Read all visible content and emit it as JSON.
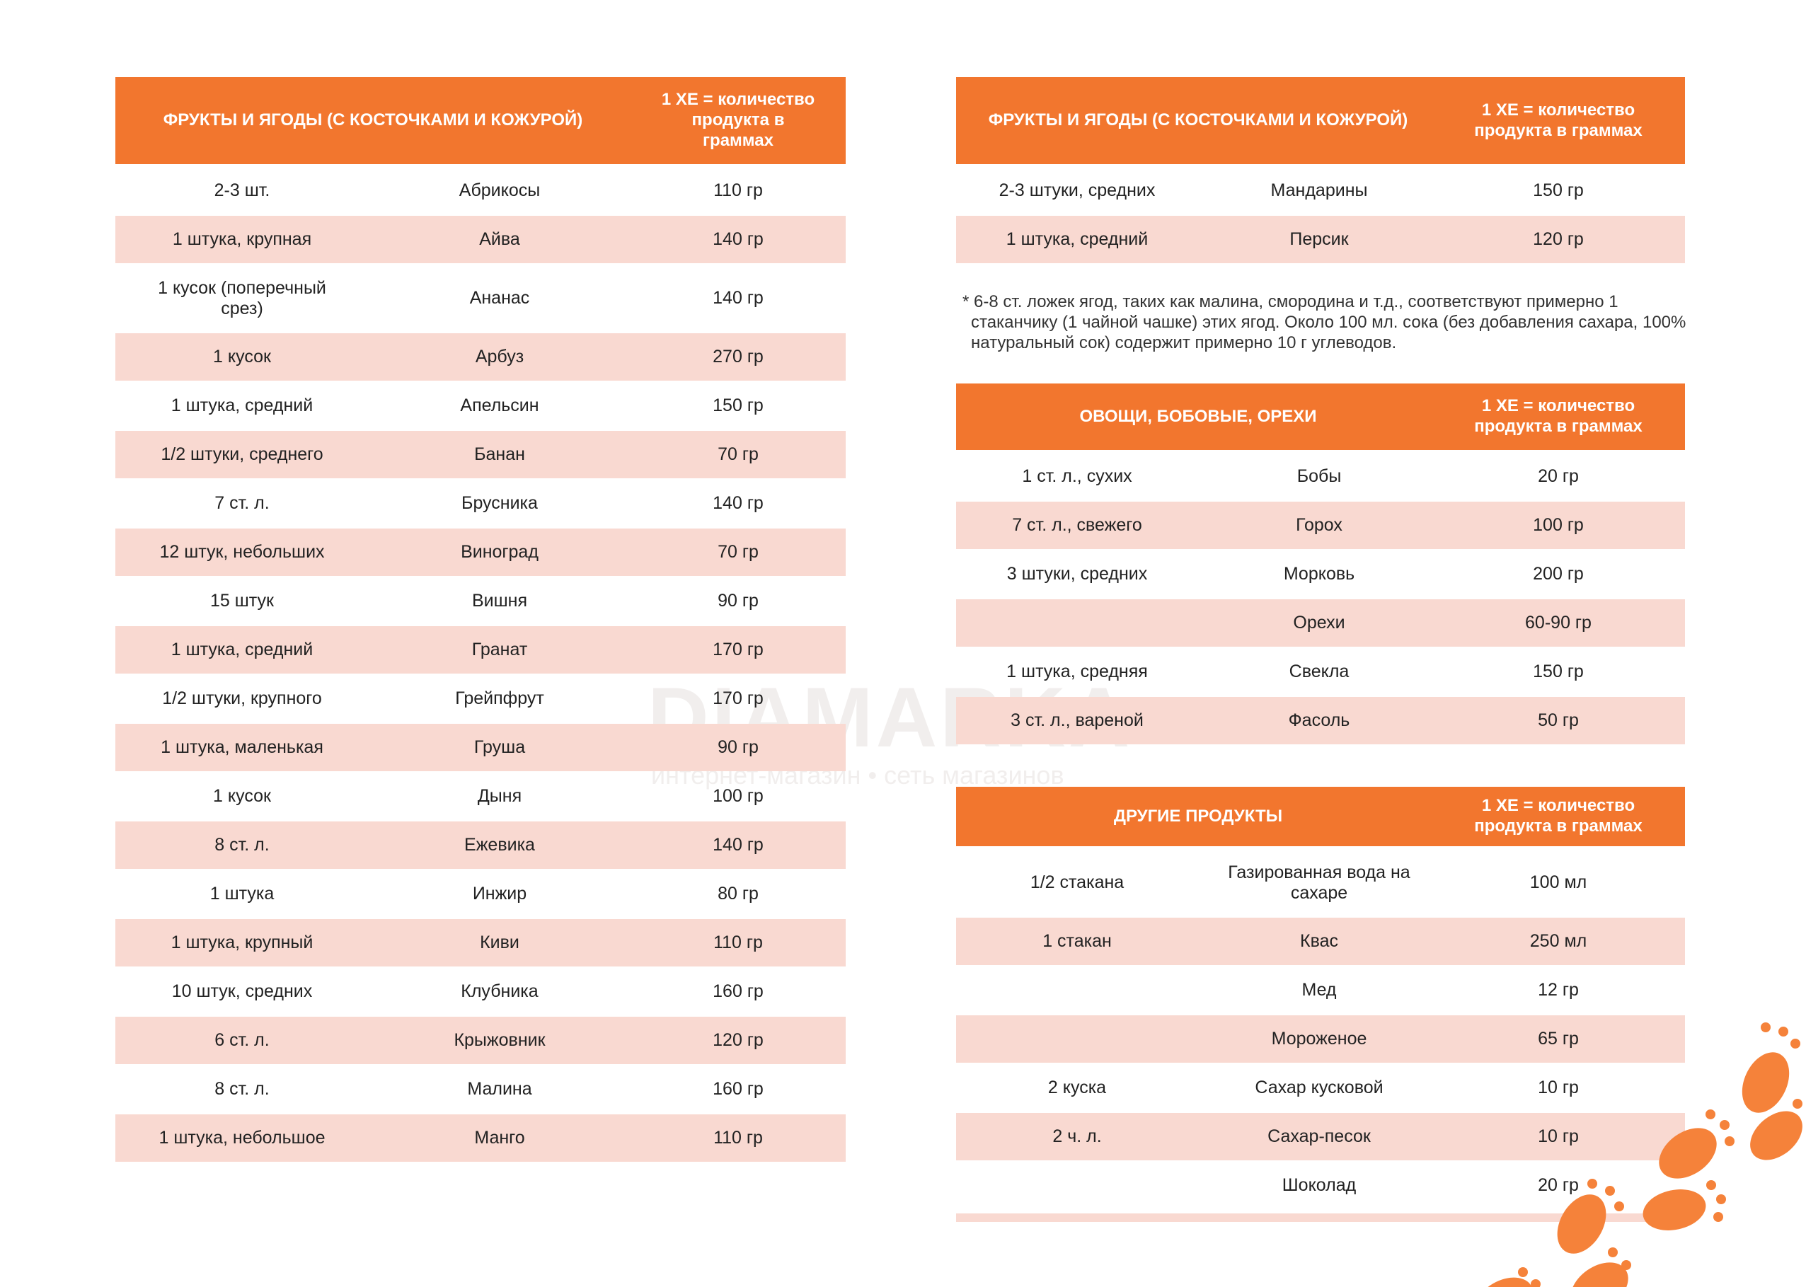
{
  "fruits_table_1": {
    "header": {
      "category": "ФРУКТЫ И ЯГОДЫ (С КОСТОЧКАМИ И КОЖУРОЙ)",
      "amount": "1 ХЕ = количество продукта в граммах"
    },
    "rows": [
      {
        "portion": "2-3 шт.",
        "product": "Абрикосы",
        "weight": "110 гр"
      },
      {
        "portion": "1 штука, крупная",
        "product": "Айва",
        "weight": "140 гр"
      },
      {
        "portion": "1 кусок (поперечный срез)",
        "product": "Ананас",
        "weight": "140 гр"
      },
      {
        "portion": "1 кусок",
        "product": "Арбуз",
        "weight": "270 гр"
      },
      {
        "portion": "1 штука, средний",
        "product": "Апельсин",
        "weight": "150 гр"
      },
      {
        "portion": "1/2 штуки, среднего",
        "product": "Банан",
        "weight": "70 гр"
      },
      {
        "portion": "7 ст. л.",
        "product": "Брусника",
        "weight": "140 гр"
      },
      {
        "portion": "12 штук, небольших",
        "product": "Виноград",
        "weight": "70 гр"
      },
      {
        "portion": "15 штук",
        "product": "Вишня",
        "weight": "90 гр"
      },
      {
        "portion": "1 штука, средний",
        "product": "Гранат",
        "weight": "170 гр"
      },
      {
        "portion": "1/2 штуки, крупного",
        "product": "Грейпфрут",
        "weight": "170 гр"
      },
      {
        "portion": "1 штука, маленькая",
        "product": "Груша",
        "weight": "90 гр"
      },
      {
        "portion": "1 кусок",
        "product": "Дыня",
        "weight": "100 гр"
      },
      {
        "portion": "8 ст. л.",
        "product": "Ежевика",
        "weight": "140 гр"
      },
      {
        "portion": "1 штука",
        "product": "Инжир",
        "weight": "80 гр"
      },
      {
        "portion": "1 штука, крупный",
        "product": "Киви",
        "weight": "110 гр"
      },
      {
        "portion": "10 штук, средних",
        "product": "Клубника",
        "weight": "160 гр"
      },
      {
        "portion": "6 ст. л.",
        "product": "Крыжовник",
        "weight": "120 гр"
      },
      {
        "portion": "8 ст. л.",
        "product": "Малина",
        "weight": "160 гр"
      },
      {
        "portion": "1 штука, небольшое",
        "product": "Манго",
        "weight": "110 гр"
      }
    ]
  },
  "fruits_table_2": {
    "header": {
      "category": "ФРУКТЫ И ЯГОДЫ (С КОСТОЧКАМИ И КОЖУРОЙ)",
      "amount": "1 ХЕ = количество продукта в граммах"
    },
    "rows": [
      {
        "portion": "2-3 штуки, средних",
        "product": "Мандарины",
        "weight": "150 гр"
      },
      {
        "portion": "1 штука, средний",
        "product": "Персик",
        "weight": "120 гр"
      }
    ]
  },
  "note": "* 6-8 ст. ложек ягод, таких как малина, смородина и т.д., соответствуют примерно 1 стаканчику (1 чайной чашке) этих ягод. Около 100 мл. сока (без добавления сахара, 100% натуральный сок) содержит примерно 10 г углеводов.",
  "vegetables_table": {
    "header": {
      "category": "ОВОЩИ, БОБОВЫЕ, ОРЕХИ",
      "amount": "1 ХЕ = количество продукта в граммах"
    },
    "rows": [
      {
        "portion": "1 ст. л., сухих",
        "product": "Бобы",
        "weight": "20 гр"
      },
      {
        "portion": "7 ст. л., свежего",
        "product": "Горох",
        "weight": "100 гр"
      },
      {
        "portion": "3 штуки, средних",
        "product": "Морковь",
        "weight": "200 гр"
      },
      {
        "portion": "",
        "product": "Орехи",
        "weight": "60-90 гр"
      },
      {
        "portion": "1 штука, средняя",
        "product": "Свекла",
        "weight": "150 гр"
      },
      {
        "portion": "3 ст. л., вареной",
        "product": "Фасоль",
        "weight": "50 гр"
      }
    ]
  },
  "other_table": {
    "header": {
      "category": "ДРУГИЕ ПРОДУКТЫ",
      "amount": "1 ХЕ = количество продукта в граммах"
    },
    "rows": [
      {
        "portion": "1/2 стакана",
        "product": "Газированная вода на сахаре",
        "weight": "100 мл"
      },
      {
        "portion": "1 стакан",
        "product": "Квас",
        "weight": "250 мл"
      },
      {
        "portion": "",
        "product": "Мед",
        "weight": "12 гр"
      },
      {
        "portion": "",
        "product": "Мороженое",
        "weight": "65 гр"
      },
      {
        "portion": "2 куска",
        "product": "Сахар кусковой",
        "weight": "10 гр"
      },
      {
        "portion": "2 ч. л.",
        "product": "Сахар-песок",
        "weight": "10 гр"
      },
      {
        "portion": "",
        "product": "Шоколад",
        "weight": "20 гр"
      }
    ]
  },
  "watermark": {
    "brand": "DIAMARKA",
    "tagline": "интернет-магазин • сеть магазинов"
  },
  "colors": {
    "header": "#f2762e",
    "stripe": "#f9d9d1",
    "footprints": "#f5823a"
  }
}
